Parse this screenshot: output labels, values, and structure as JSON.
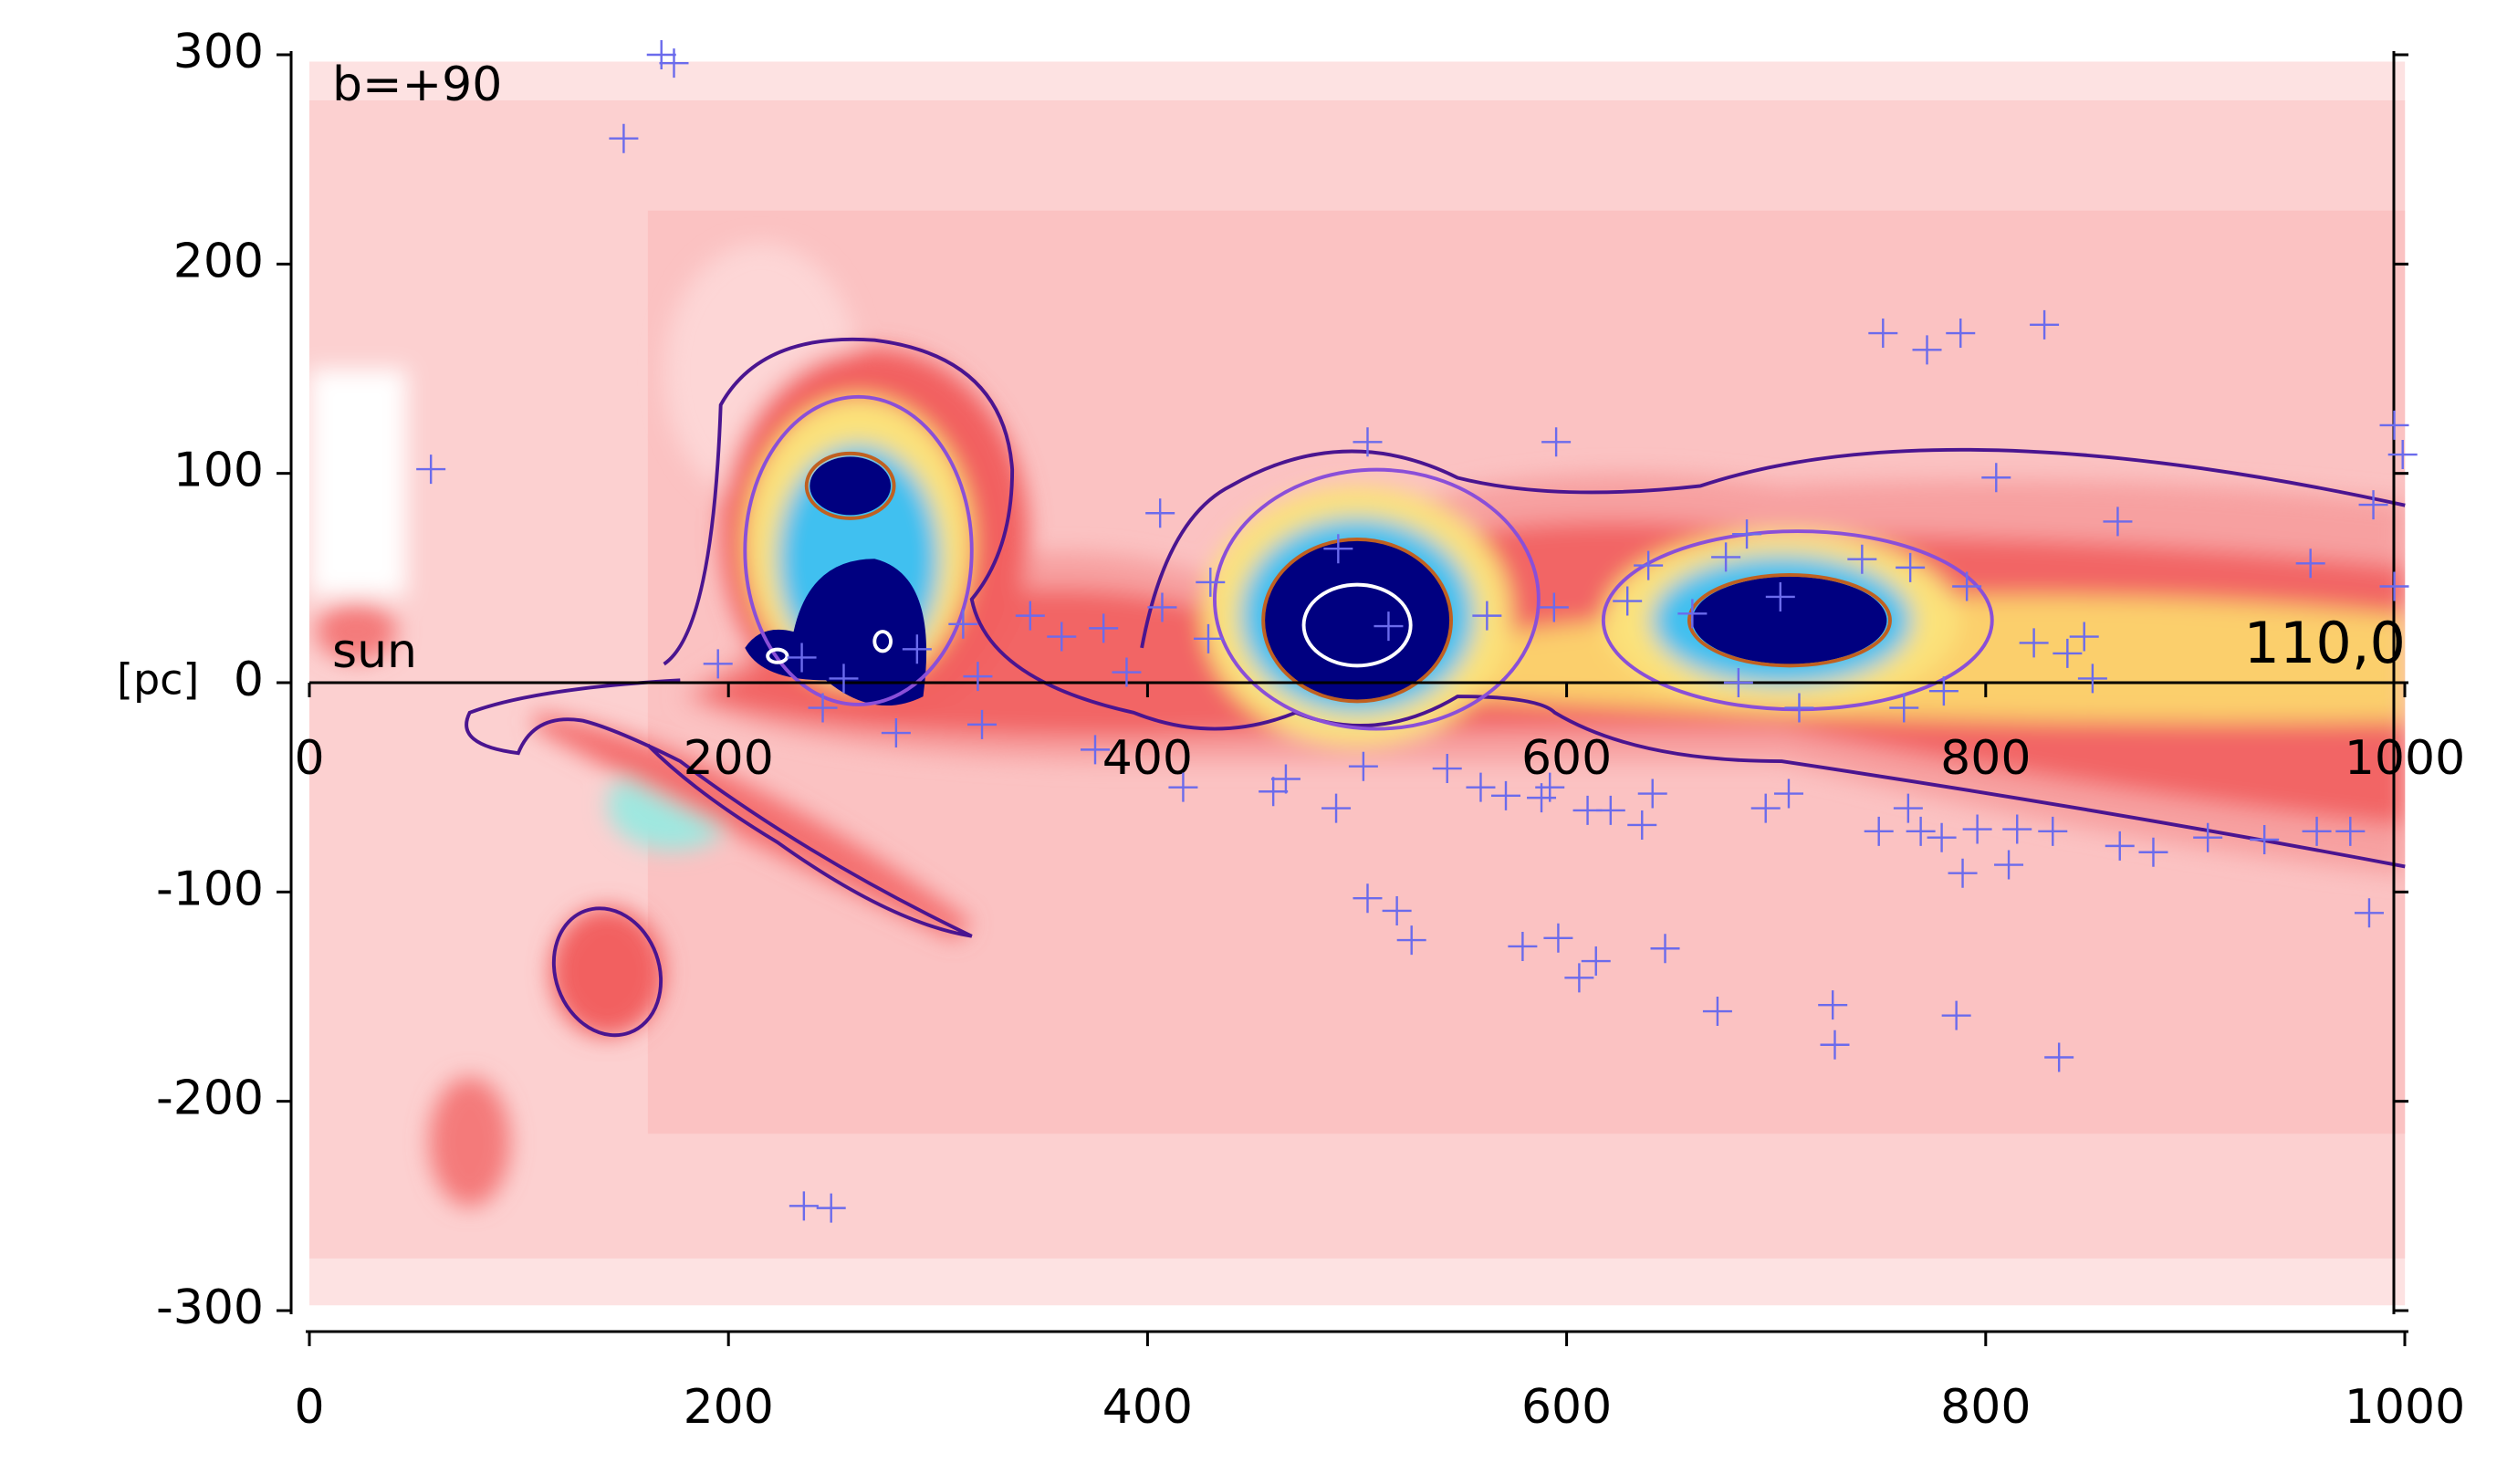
{
  "chart_data": {
    "type": "scatter",
    "annotations": {
      "field": "b=+90",
      "origin": "sun",
      "unit": "[pc]",
      "corner": "110,0"
    },
    "x": [
      168,
      174,
      150,
      58,
      236,
      249,
      406,
      505,
      595,
      751,
      772,
      788,
      828,
      995,
      999,
      985,
      805,
      863,
      955,
      995,
      823,
      839,
      639,
      629,
      594,
      562,
      491,
      515,
      430,
      407,
      429,
      390,
      359,
      379,
      344,
      312,
      290,
      319,
      195,
      235,
      245,
      255,
      280,
      321,
      503,
      466,
      460,
      490,
      417,
      375,
      543,
      559,
      571,
      588,
      592,
      610,
      621,
      636,
      641,
      695,
      706,
      749,
      763,
      769,
      779,
      796,
      811,
      815,
      832,
      864,
      880,
      906,
      933,
      958,
      974,
      983,
      789,
      505,
      519,
      526,
      579,
      596,
      606,
      614,
      647,
      672,
      727,
      728,
      786,
      835,
      702,
      686,
      741,
      764,
      791,
      676,
      660,
      682,
      711,
      761,
      780,
      847,
      851
    ],
    "y": [
      300,
      296,
      260,
      102,
      -250,
      -251,
      81,
      115,
      115,
      167,
      159,
      167,
      171,
      123,
      109,
      85,
      98,
      77,
      57,
      46,
      19,
      14,
      56,
      39,
      36,
      32,
      64,
      27,
      48,
      36,
      21,
      5,
      22,
      26,
      32,
      28,
      16,
      3,
      9,
      12,
      -12,
      2,
      -24,
      -20,
      -40,
      -46,
      -52,
      -60,
      -50,
      -32,
      -41,
      -50,
      -54,
      -55,
      -50,
      -61,
      -61,
      -68,
      -53,
      -60,
      -53,
      -71,
      -60,
      -71,
      -74,
      -70,
      -87,
      -70,
      -71,
      -78,
      -81,
      -74,
      -75,
      -71,
      -71,
      -110,
      -91,
      -103,
      -109,
      -123,
      -126,
      -122,
      -141,
      -133,
      -127,
      -157,
      -154,
      -173,
      -159,
      -179,
      41,
      71,
      59,
      55,
      46,
      60,
      33,
      0,
      -12,
      -12,
      -4,
      22,
      2
    ],
    "color": "#6b6bec",
    "marker": "+",
    "xlim": [
      0,
      1000
    ],
    "ylim": [
      -300,
      300
    ],
    "xticks": [
      0,
      200,
      400,
      600,
      800,
      1000
    ],
    "yticks": [
      -300,
      -200,
      -100,
      0,
      100,
      200,
      300
    ]
  }
}
